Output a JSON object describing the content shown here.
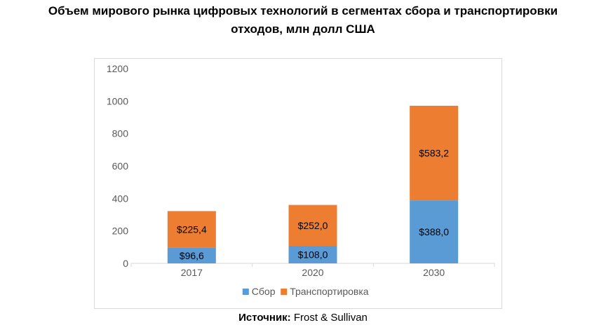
{
  "title_line1": "Объем мирового рынка цифровых технологий в сегментах сбора и транспортировки",
  "title_line2": "отходов, млн долл США",
  "source": {
    "label": "Источник:",
    "value": "Frost & Sullivan"
  },
  "colors": {
    "series_1": "#5b9bd5",
    "series_2": "#ed7d31",
    "axis_text": "#595959",
    "label_text": "#000000"
  },
  "chart_data": {
    "type": "bar",
    "stacked": true,
    "categories": [
      "2017",
      "2020",
      "2030"
    ],
    "series": [
      {
        "name": "Сбор",
        "values": [
          96.6,
          108.0,
          388.0
        ],
        "labels": [
          "$96,6",
          "$108,0",
          "$388,0"
        ]
      },
      {
        "name": "Транспортировка",
        "values": [
          225.4,
          252.0,
          583.2
        ],
        "labels": [
          "$225,4",
          "$252,0",
          "$583,2"
        ]
      }
    ],
    "ylim": [
      0,
      1200
    ],
    "yticks": [
      "0",
      "200",
      "400",
      "600",
      "800",
      "1000",
      "1200"
    ],
    "grid": false,
    "legend": "bottom"
  }
}
